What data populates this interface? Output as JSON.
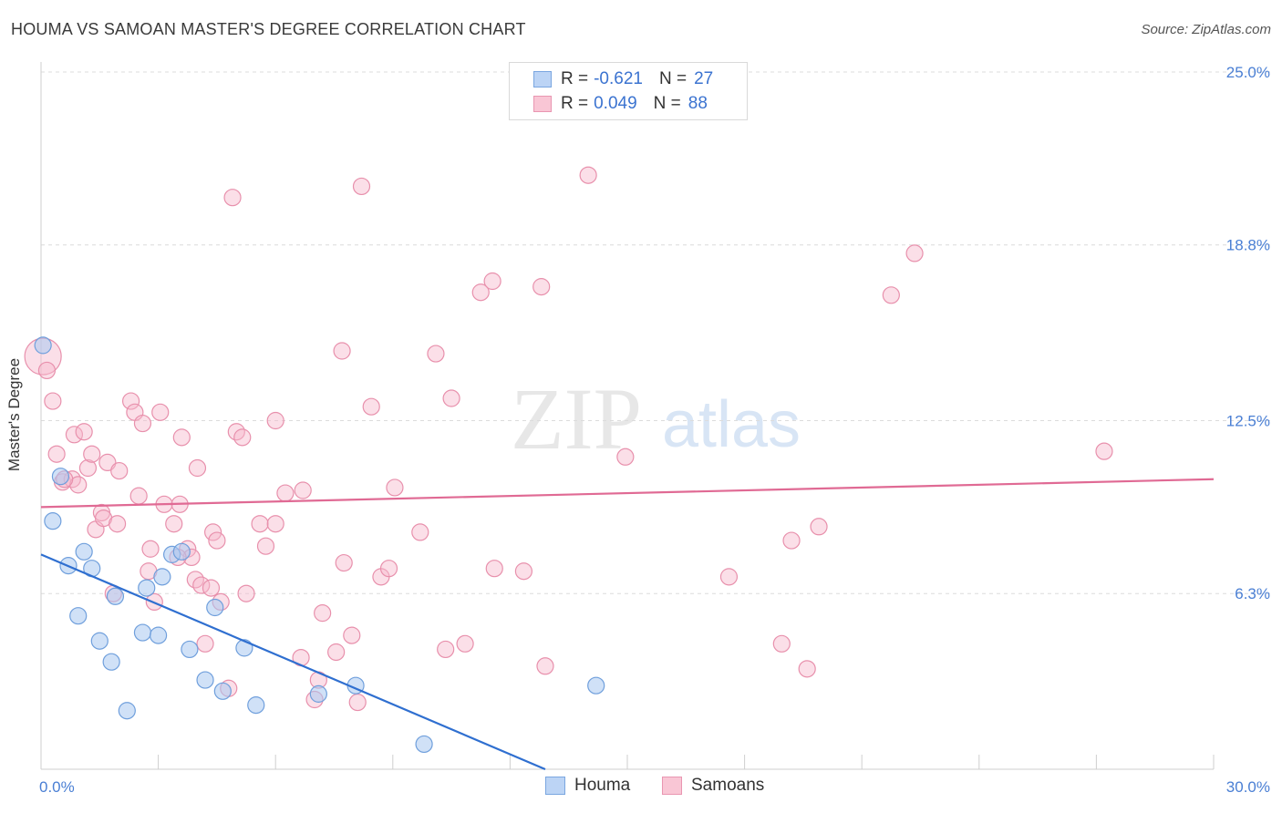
{
  "header": {
    "title": "HOUMA VS SAMOAN MASTER'S DEGREE CORRELATION CHART",
    "source": "Source: ZipAtlas.com"
  },
  "watermark": {
    "zip": "ZIP",
    "atlas": "atlas"
  },
  "colors": {
    "houma_fill": "#a9c8f0",
    "houma_stroke": "#6f9fdc",
    "houma_line": "#2f6fd0",
    "samoan_fill": "#f6b8cb",
    "samoan_stroke": "#e890ac",
    "samoan_line": "#e06a94",
    "accent_text": "#3b73d0"
  },
  "legend_top": {
    "houma": {
      "r_label": "R =",
      "r_value": "-0.621",
      "n_label": "N =",
      "n_value": "27"
    },
    "samoan": {
      "r_label": "R =",
      "r_value": "0.049",
      "n_label": "N =",
      "n_value": "88"
    }
  },
  "legend_bottom": {
    "houma": "Houma",
    "samoan": "Samoans"
  },
  "chart_data": {
    "type": "scatter",
    "title": "HOUMA VS SAMOAN MASTER'S DEGREE CORRELATION CHART",
    "xlabel": "",
    "ylabel": "Master's Degree",
    "xlim": [
      0,
      30
    ],
    "ylim": [
      0,
      25
    ],
    "x_tick_labels": [
      "0.0%",
      "30.0%"
    ],
    "y_ticks": [
      6.3,
      12.5,
      18.8,
      25.0
    ],
    "y_tick_labels": [
      "6.3%",
      "12.5%",
      "18.8%",
      "25.0%"
    ],
    "grid": true,
    "series": [
      {
        "name": "Houma",
        "r": -0.621,
        "n": 27,
        "trend": {
          "x": [
            0,
            12.9
          ],
          "y": [
            7.7,
            0
          ]
        },
        "points": [
          {
            "x": 0.05,
            "y": 15.2
          },
          {
            "x": 0.5,
            "y": 10.5
          },
          {
            "x": 0.3,
            "y": 8.9
          },
          {
            "x": 1.1,
            "y": 7.8
          },
          {
            "x": 0.7,
            "y": 7.3
          },
          {
            "x": 1.3,
            "y": 7.2
          },
          {
            "x": 1.9,
            "y": 6.2
          },
          {
            "x": 3.1,
            "y": 6.9
          },
          {
            "x": 3.35,
            "y": 7.7
          },
          {
            "x": 2.7,
            "y": 6.5
          },
          {
            "x": 0.95,
            "y": 5.5
          },
          {
            "x": 2.6,
            "y": 4.9
          },
          {
            "x": 3.0,
            "y": 4.8
          },
          {
            "x": 1.5,
            "y": 4.6
          },
          {
            "x": 3.8,
            "y": 4.3
          },
          {
            "x": 4.45,
            "y": 5.8
          },
          {
            "x": 5.2,
            "y": 4.35
          },
          {
            "x": 1.8,
            "y": 3.85
          },
          {
            "x": 4.2,
            "y": 3.2
          },
          {
            "x": 4.65,
            "y": 2.8
          },
          {
            "x": 5.5,
            "y": 2.3
          },
          {
            "x": 2.2,
            "y": 2.1
          },
          {
            "x": 7.1,
            "y": 2.7
          },
          {
            "x": 8.05,
            "y": 3.0
          },
          {
            "x": 14.2,
            "y": 3.0
          },
          {
            "x": 9.8,
            "y": 0.9
          },
          {
            "x": 3.6,
            "y": 7.8
          }
        ]
      },
      {
        "name": "Samoans",
        "r": 0.049,
        "n": 88,
        "trend": {
          "x": [
            0,
            30
          ],
          "y": [
            9.4,
            10.4
          ]
        },
        "points": [
          {
            "x": 0.05,
            "y": 14.8,
            "big": true
          },
          {
            "x": 0.15,
            "y": 14.3
          },
          {
            "x": 0.3,
            "y": 13.2
          },
          {
            "x": 0.4,
            "y": 11.3
          },
          {
            "x": 0.55,
            "y": 10.3
          },
          {
            "x": 0.8,
            "y": 10.4
          },
          {
            "x": 0.85,
            "y": 12.0
          },
          {
            "x": 0.95,
            "y": 10.2
          },
          {
            "x": 1.1,
            "y": 12.1
          },
          {
            "x": 1.2,
            "y": 10.8
          },
          {
            "x": 1.3,
            "y": 11.3
          },
          {
            "x": 1.4,
            "y": 8.6
          },
          {
            "x": 1.55,
            "y": 9.2
          },
          {
            "x": 1.6,
            "y": 9.0
          },
          {
            "x": 1.7,
            "y": 11.0
          },
          {
            "x": 1.85,
            "y": 6.3
          },
          {
            "x": 1.95,
            "y": 8.8
          },
          {
            "x": 2.0,
            "y": 10.7
          },
          {
            "x": 2.3,
            "y": 13.2
          },
          {
            "x": 2.4,
            "y": 12.8
          },
          {
            "x": 2.5,
            "y": 9.8
          },
          {
            "x": 2.6,
            "y": 12.4
          },
          {
            "x": 2.8,
            "y": 7.9
          },
          {
            "x": 2.75,
            "y": 7.1
          },
          {
            "x": 2.9,
            "y": 6.0
          },
          {
            "x": 3.05,
            "y": 12.8
          },
          {
            "x": 3.15,
            "y": 9.5
          },
          {
            "x": 3.4,
            "y": 8.8
          },
          {
            "x": 3.55,
            "y": 9.5
          },
          {
            "x": 3.6,
            "y": 11.9
          },
          {
            "x": 3.75,
            "y": 7.9
          },
          {
            "x": 3.85,
            "y": 7.6
          },
          {
            "x": 3.95,
            "y": 6.8
          },
          {
            "x": 4.0,
            "y": 10.8
          },
          {
            "x": 4.1,
            "y": 6.6
          },
          {
            "x": 4.2,
            "y": 4.5
          },
          {
            "x": 4.35,
            "y": 6.5
          },
          {
            "x": 4.4,
            "y": 8.5
          },
          {
            "x": 4.5,
            "y": 8.2
          },
          {
            "x": 4.6,
            "y": 6.0
          },
          {
            "x": 4.8,
            "y": 2.9
          },
          {
            "x": 4.9,
            "y": 20.5
          },
          {
            "x": 5.0,
            "y": 12.1
          },
          {
            "x": 5.15,
            "y": 11.9
          },
          {
            "x": 5.25,
            "y": 6.3
          },
          {
            "x": 5.6,
            "y": 8.8
          },
          {
            "x": 5.75,
            "y": 8.0
          },
          {
            "x": 6.0,
            "y": 12.5
          },
          {
            "x": 6.0,
            "y": 8.8
          },
          {
            "x": 6.25,
            "y": 9.9
          },
          {
            "x": 6.65,
            "y": 4.0
          },
          {
            "x": 6.7,
            "y": 10.0
          },
          {
            "x": 7.0,
            "y": 2.5
          },
          {
            "x": 7.1,
            "y": 3.2
          },
          {
            "x": 7.2,
            "y": 5.6
          },
          {
            "x": 7.55,
            "y": 4.2
          },
          {
            "x": 7.7,
            "y": 15.0
          },
          {
            "x": 7.75,
            "y": 7.4
          },
          {
            "x": 7.95,
            "y": 4.8
          },
          {
            "x": 8.1,
            "y": 2.4
          },
          {
            "x": 8.2,
            "y": 20.9
          },
          {
            "x": 8.45,
            "y": 13.0
          },
          {
            "x": 8.7,
            "y": 6.9
          },
          {
            "x": 8.9,
            "y": 7.2
          },
          {
            "x": 9.05,
            "y": 10.1
          },
          {
            "x": 9.7,
            "y": 8.5
          },
          {
            "x": 10.1,
            "y": 14.9
          },
          {
            "x": 10.35,
            "y": 4.3
          },
          {
            "x": 10.5,
            "y": 13.3
          },
          {
            "x": 10.85,
            "y": 4.5
          },
          {
            "x": 11.25,
            "y": 17.1
          },
          {
            "x": 11.55,
            "y": 17.5
          },
          {
            "x": 11.6,
            "y": 7.2
          },
          {
            "x": 12.35,
            "y": 7.1
          },
          {
            "x": 12.8,
            "y": 17.3
          },
          {
            "x": 12.9,
            "y": 3.7
          },
          {
            "x": 14.0,
            "y": 21.3
          },
          {
            "x": 14.95,
            "y": 11.2
          },
          {
            "x": 17.6,
            "y": 6.9
          },
          {
            "x": 18.95,
            "y": 4.5
          },
          {
            "x": 19.2,
            "y": 8.2
          },
          {
            "x": 19.6,
            "y": 3.6
          },
          {
            "x": 19.9,
            "y": 8.7
          },
          {
            "x": 21.75,
            "y": 17.0
          },
          {
            "x": 22.35,
            "y": 18.5
          },
          {
            "x": 27.2,
            "y": 11.4
          },
          {
            "x": 0.6,
            "y": 10.4
          },
          {
            "x": 3.5,
            "y": 7.6
          }
        ]
      }
    ]
  }
}
